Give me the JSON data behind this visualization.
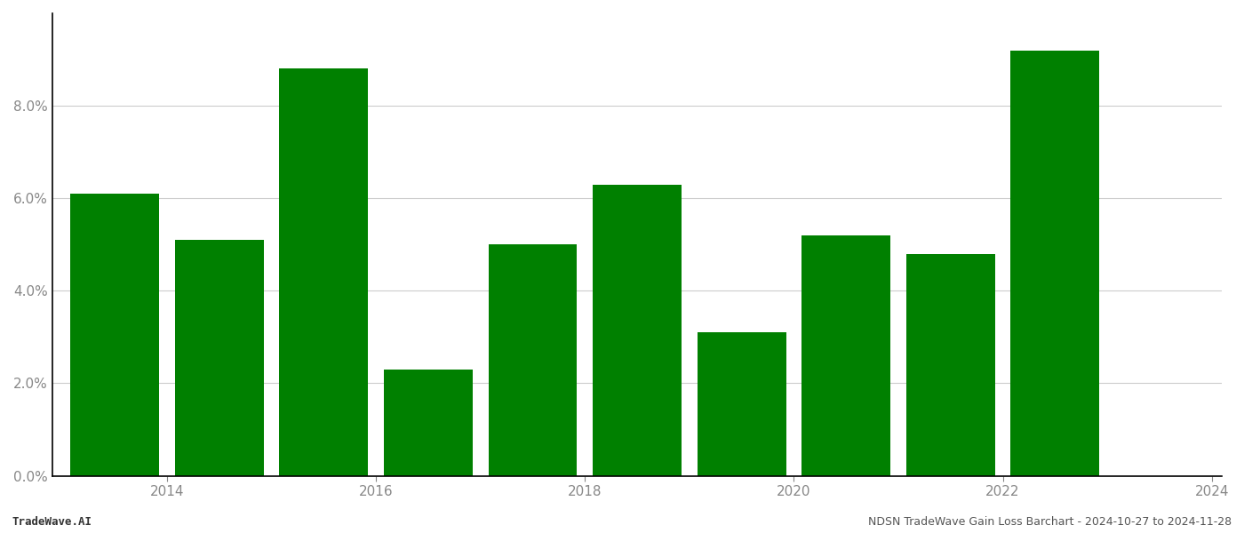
{
  "years": [
    2014,
    2015,
    2016,
    2017,
    2018,
    2019,
    2020,
    2021,
    2022,
    2023
  ],
  "values": [
    0.061,
    0.051,
    0.088,
    0.023,
    0.05,
    0.063,
    0.031,
    0.052,
    0.048,
    0.092
  ],
  "bar_color": "#008000",
  "background_color": "#ffffff",
  "ylim": [
    0,
    0.1
  ],
  "yticks": [
    0.0,
    0.02,
    0.04,
    0.06,
    0.08
  ],
  "xtick_positions": [
    0.5,
    2.5,
    4.5,
    6.5,
    8.5,
    10.5
  ],
  "xtick_labels": [
    "2014",
    "2016",
    "2018",
    "2020",
    "2022",
    "2024"
  ],
  "footer_left": "TradeWave.AI",
  "footer_right": "NDSN TradeWave Gain Loss Barchart - 2024-10-27 to 2024-11-28",
  "footer_fontsize": 9,
  "tick_fontsize": 11,
  "grid_color": "#cccccc",
  "bar_width": 0.85
}
